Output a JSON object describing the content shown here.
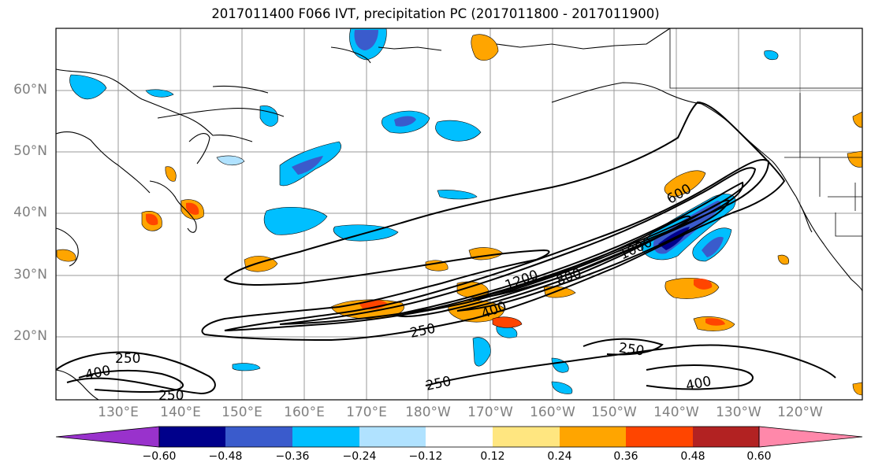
{
  "title": "2017011400 F066 IVT, precipitation PC (2017011800 - 2017011900)",
  "lat_ticks": [
    "60°N",
    "50°N",
    "40°N",
    "30°N",
    "20°N"
  ],
  "lon_ticks": [
    "130°E",
    "140°E",
    "150°E",
    "160°E",
    "170°E",
    "180°W",
    "170°W",
    "160°W",
    "150°W",
    "140°W",
    "130°W",
    "120°W"
  ],
  "contour_labels": [
    "250",
    "250",
    "250",
    "250",
    "400",
    "400",
    "400",
    "600",
    "800",
    "1000",
    "1200",
    "250"
  ],
  "colorbar": {
    "ticks": [
      "−0.60",
      "−0.48",
      "−0.36",
      "−0.24",
      "−0.12",
      "0.12",
      "0.24",
      "0.36",
      "0.48",
      "0.60"
    ],
    "colors": [
      "#9932CC",
      "#00008B",
      "#3A5BCC",
      "#00BFFF",
      "#B0E2FF",
      "#FFFFFF",
      "#FFE680",
      "#FFA500",
      "#FF4500",
      "#B22222",
      "#FF88AA"
    ]
  },
  "colors": {
    "land_line": "#000000",
    "grid": "#999999",
    "contour": "#000000"
  }
}
